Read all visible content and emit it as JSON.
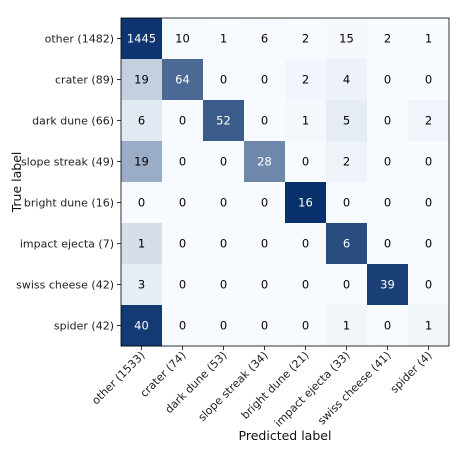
{
  "chart_data": {
    "type": "heatmap",
    "title": "",
    "xlabel": "Predicted label",
    "ylabel": "True label",
    "row_labels": [
      "other (1482)",
      "crater (89)",
      "dark dune (66)",
      "slope streak (49)",
      "bright dune (16)",
      "impact ejecta (7)",
      "swiss cheese (42)",
      "spider (42)"
    ],
    "col_labels": [
      "other (1533)",
      "crater (74)",
      "dark dune (53)",
      "slope streak (34)",
      "bright dune (21)",
      "impact ejecta (33)",
      "swiss cheese (41)",
      "spider (4)"
    ],
    "matrix": [
      [
        1445,
        10,
        1,
        6,
        2,
        15,
        2,
        1
      ],
      [
        19,
        64,
        0,
        0,
        2,
        4,
        0,
        0
      ],
      [
        6,
        0,
        52,
        0,
        1,
        5,
        0,
        2
      ],
      [
        19,
        0,
        0,
        28,
        0,
        2,
        0,
        0
      ],
      [
        0,
        0,
        0,
        0,
        16,
        0,
        0,
        0
      ],
      [
        1,
        0,
        0,
        0,
        0,
        6,
        0,
        0
      ],
      [
        3,
        0,
        0,
        0,
        0,
        0,
        39,
        0
      ],
      [
        40,
        0,
        0,
        0,
        0,
        1,
        0,
        1
      ]
    ],
    "colormap": {
      "low": "#f7fbff",
      "high": "#08306b"
    },
    "text_colors": {
      "dark": "#000000",
      "light": "#ffffff"
    }
  }
}
